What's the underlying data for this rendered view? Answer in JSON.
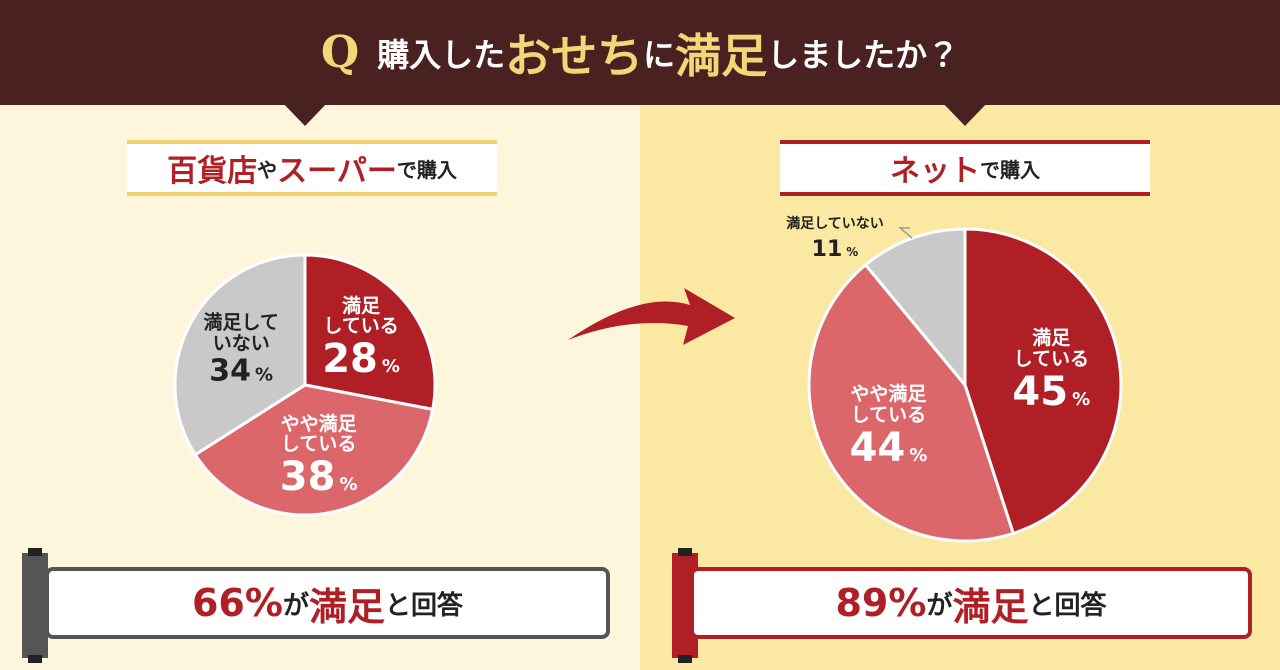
{
  "header": {
    "q": "Q",
    "title_parts": [
      "購入した",
      "おせち",
      "に",
      "満足",
      "しましたか？"
    ]
  },
  "chart_data": [
    {
      "type": "pie",
      "title_parts": [
        "百貨店",
        "や",
        "スーパー",
        "で購入"
      ],
      "categories": [
        "満足\nしている",
        "やや満足\nしている",
        "満足して\nいない"
      ],
      "values": [
        28,
        38,
        34
      ],
      "unit": "%",
      "colors": [
        "#b01f26",
        "#dc676b",
        "#c9c9c9"
      ],
      "accent": "#f0d36a",
      "summary_parts": [
        "66%",
        "が",
        "満足",
        "と回答"
      ]
    },
    {
      "type": "pie",
      "title_parts": [
        "ネット",
        "で購入"
      ],
      "categories": [
        "満足\nしている",
        "やや満足\nしている",
        "満足していない"
      ],
      "values": [
        45,
        44,
        11
      ],
      "unit": "%",
      "colors": [
        "#b01f26",
        "#dc676b",
        "#c9c9c9"
      ],
      "accent": "#b01f26",
      "summary_parts": [
        "89%",
        "が",
        "満足",
        "と回答"
      ]
    }
  ]
}
